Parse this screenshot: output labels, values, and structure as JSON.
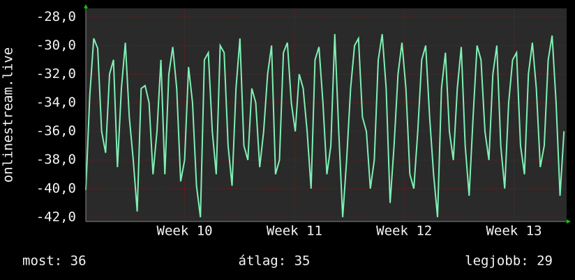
{
  "chart_data": {
    "type": "line",
    "y_label": "onlinestream.live",
    "annotations": [
      "most: 36",
      "átlag: 35",
      "legjobb: 29"
    ],
    "xlim": [
      9.1,
      13.48
    ],
    "ylim": [
      -42.3,
      -27.4
    ],
    "xticks": [
      {
        "value": 10,
        "label": "Week 10"
      },
      {
        "value": 11,
        "label": "Week 11"
      },
      {
        "value": 12,
        "label": "Week 12"
      },
      {
        "value": 13,
        "label": "Week 13"
      }
    ],
    "yticks": [
      {
        "value": -28,
        "label": "-28,0"
      },
      {
        "value": -30,
        "label": "-30,0"
      },
      {
        "value": -32,
        "label": "-32,0"
      },
      {
        "value": -34,
        "label": "-34,0"
      },
      {
        "value": -36,
        "label": "-36,0"
      },
      {
        "value": -38,
        "label": "-38,0"
      },
      {
        "value": -40,
        "label": "-40,0"
      },
      {
        "value": -42,
        "label": "-42,0"
      }
    ],
    "grid": true,
    "series": [
      {
        "name": "onlinestream.live",
        "color": "#7ff0b4",
        "x": [
          9.1,
          9.136,
          9.172,
          9.208,
          9.244,
          9.28,
          9.316,
          9.352,
          9.388,
          9.424,
          9.46,
          9.496,
          9.532,
          9.568,
          9.604,
          9.64,
          9.676,
          9.712,
          9.748,
          9.784,
          9.82,
          9.856,
          9.892,
          9.928,
          9.964,
          10.0,
          10.036,
          10.072,
          10.108,
          10.144,
          10.18,
          10.216,
          10.252,
          10.288,
          10.324,
          10.36,
          10.396,
          10.432,
          10.468,
          10.504,
          10.54,
          10.576,
          10.612,
          10.648,
          10.684,
          10.72,
          10.756,
          10.792,
          10.828,
          10.864,
          10.9,
          10.936,
          10.972,
          11.008,
          11.044,
          11.08,
          11.116,
          11.152,
          11.188,
          11.224,
          11.26,
          11.296,
          11.332,
          11.368,
          11.404,
          11.44,
          11.476,
          11.512,
          11.548,
          11.584,
          11.62,
          11.656,
          11.692,
          11.728,
          11.764,
          11.8,
          11.836,
          11.872,
          11.908,
          11.944,
          11.98,
          12.016,
          12.052,
          12.088,
          12.124,
          12.16,
          12.196,
          12.232,
          12.268,
          12.304,
          12.34,
          12.376,
          12.412,
          12.448,
          12.484,
          12.52,
          12.556,
          12.592,
          12.628,
          12.664,
          12.7,
          12.736,
          12.772,
          12.808,
          12.844,
          12.88,
          12.916,
          12.952,
          12.988,
          13.024,
          13.06,
          13.096,
          13.132,
          13.168,
          13.204,
          13.24,
          13.276,
          13.312,
          13.348,
          13.384,
          13.42,
          13.456
        ],
        "values": [
          -40.1,
          -33.5,
          -29.5,
          -30.2,
          -36,
          -37.5,
          -32,
          -31,
          -38.5,
          -33,
          -29.8,
          -35,
          -38,
          -41.6,
          -33,
          -32.8,
          -34,
          -39,
          -36,
          -31,
          -39,
          -32,
          -30.1,
          -33,
          -39.5,
          -38,
          -31.5,
          -34,
          -39.8,
          -42,
          -31,
          -30.5,
          -36,
          -39,
          -30,
          -30.5,
          -37,
          -39.8,
          -33,
          -29.5,
          -37,
          -38,
          -33,
          -34,
          -38.5,
          -36,
          -32,
          -30,
          -39,
          -38,
          -30.5,
          -29.8,
          -34,
          -36,
          -32,
          -33,
          -36,
          -40,
          -31,
          -30.1,
          -34,
          -39,
          -37,
          -29.2,
          -36,
          -42,
          -38,
          -33,
          -30,
          -29.5,
          -35,
          -36,
          -40,
          -38,
          -31,
          -29.2,
          -33,
          -41,
          -37,
          -32,
          -29.8,
          -33,
          -39,
          -40,
          -36,
          -31,
          -30,
          -35,
          -39,
          -42,
          -33,
          -30.5,
          -36,
          -38,
          -33,
          -30.1,
          -37,
          -40.5,
          -35,
          -30,
          -31,
          -36,
          -38,
          -32,
          -30,
          -37,
          -40,
          -34,
          -31,
          -30.5,
          -37,
          -39,
          -32,
          -29.8,
          -33,
          -38.5,
          -37,
          -31,
          -29.3,
          -34,
          -40.5,
          -36
        ]
      }
    ]
  }
}
